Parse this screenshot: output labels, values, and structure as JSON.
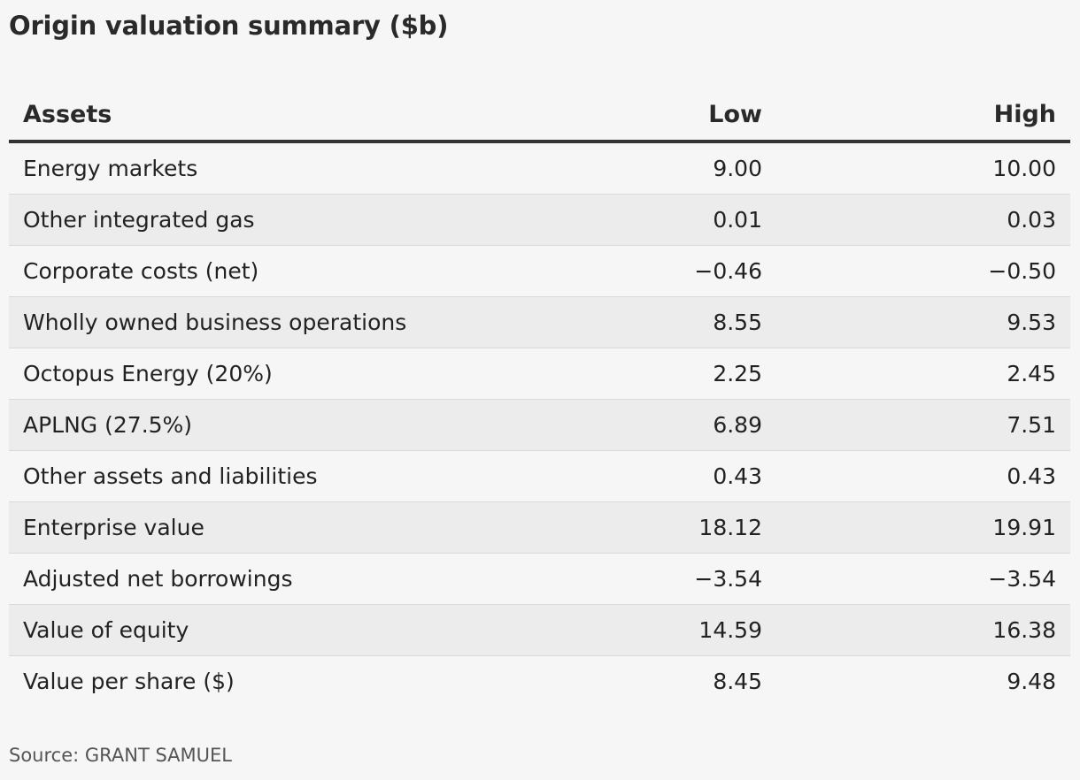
{
  "chart_data": {
    "type": "table",
    "title": "Origin valuation summary ($b)",
    "columns": [
      "Assets",
      "Low",
      "High"
    ],
    "rows": [
      {
        "label": "Energy markets",
        "low": "9.00",
        "high": "10.00"
      },
      {
        "label": "Other integrated gas",
        "low": "0.01",
        "high": "0.03"
      },
      {
        "label": "Corporate costs (net)",
        "low": "−0.46",
        "high": "−0.50"
      },
      {
        "label": "Wholly owned business operations",
        "low": "8.55",
        "high": "9.53"
      },
      {
        "label": "Octopus Energy (20%)",
        "low": "2.25",
        "high": "2.45"
      },
      {
        "label": "APLNG (27.5%)",
        "low": "6.89",
        "high": "7.51"
      },
      {
        "label": "Other assets and liabilities",
        "low": "0.43",
        "high": "0.43"
      },
      {
        "label": "Enterprise value",
        "low": "18.12",
        "high": "19.91"
      },
      {
        "label": "Adjusted net borrowings",
        "low": "−3.54",
        "high": "−3.54"
      },
      {
        "label": "Value of equity",
        "low": "14.59",
        "high": "16.38"
      },
      {
        "label": "Value per share ($)",
        "low": "8.45",
        "high": "9.48"
      }
    ],
    "source": "Source: GRANT SAMUEL"
  }
}
